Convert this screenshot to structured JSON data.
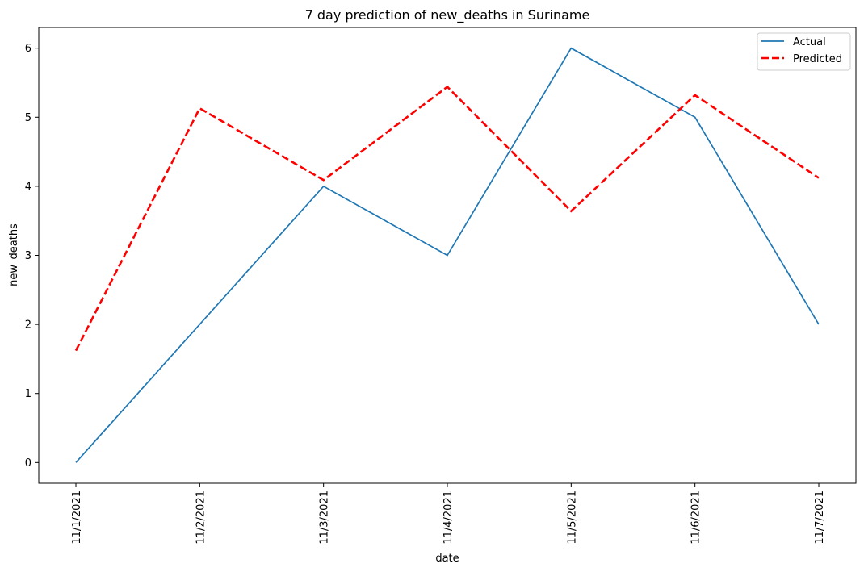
{
  "chart_data": {
    "type": "line",
    "title": "7 day prediction of new_deaths in Suriname",
    "xlabel": "date",
    "ylabel": "new_deaths",
    "categories": [
      "11/1/2021",
      "11/2/2021",
      "11/3/2021",
      "11/4/2021",
      "11/5/2021",
      "11/6/2021",
      "11/7/2021"
    ],
    "yticks": [
      "0",
      "1",
      "2",
      "3",
      "4",
      "5",
      "6"
    ],
    "ylim": [
      -0.3,
      6.3
    ],
    "grid": false,
    "legend_position": "top-right",
    "series": [
      {
        "name": "Actual",
        "values": [
          0,
          2,
          4,
          3,
          6,
          5,
          2
        ],
        "color": "#1f77b4",
        "style": "solid"
      },
      {
        "name": "Predicted",
        "values": [
          1.62,
          5.13,
          4.09,
          5.44,
          3.64,
          5.32,
          4.12
        ],
        "color": "#ff0000",
        "style": "dashed"
      }
    ]
  }
}
